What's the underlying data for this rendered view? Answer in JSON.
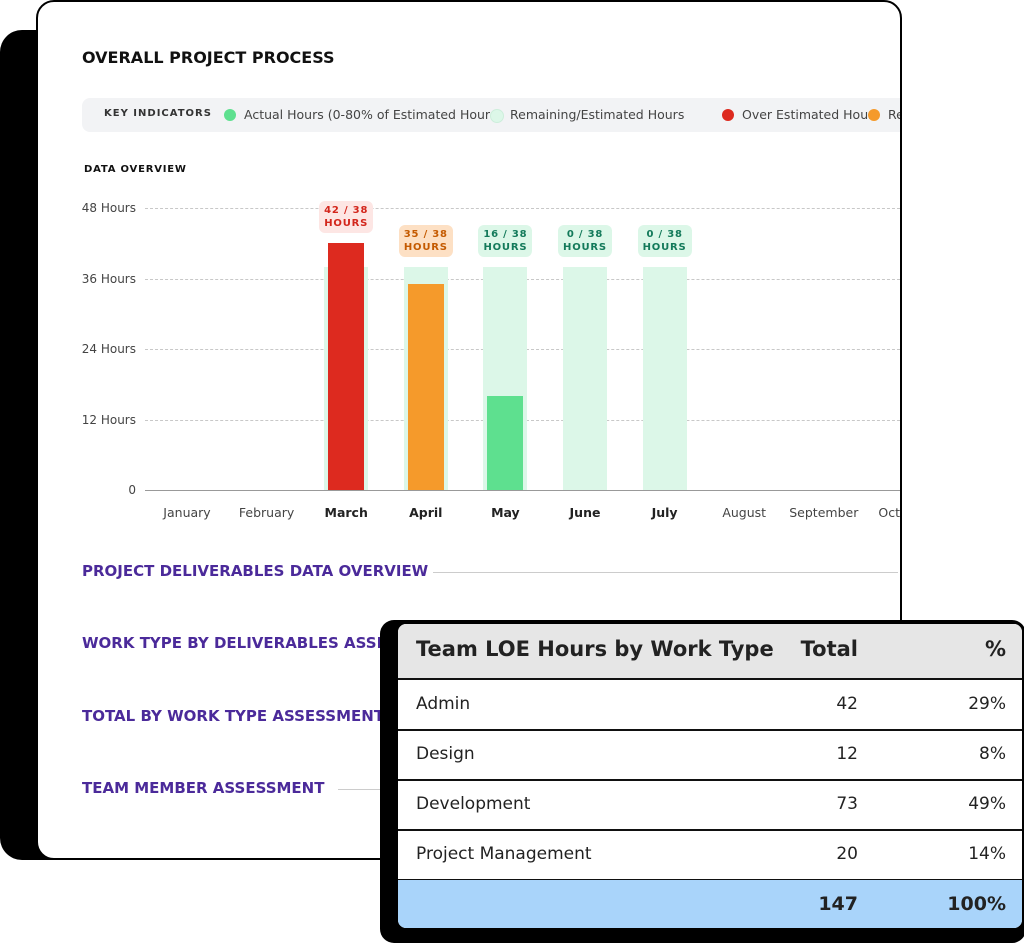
{
  "panel": {
    "title": "OVERALL PROJECT PROCESS",
    "key_indicators_label": "KEY INDICATORS",
    "key_indicators": [
      {
        "name": "Actual Hours (0-80% of Estimated Hour",
        "color": "#5ee08f"
      },
      {
        "name": "Remaining/Estimated Hours",
        "color": "#dcf7e8"
      },
      {
        "name": "Over Estimated Hours",
        "color": "#dd2a1f"
      },
      {
        "name": "Re",
        "color": "#f59a2b"
      }
    ],
    "chart_label": "DATA OVERVIEW",
    "chart_data": {
      "type": "bar",
      "categories": [
        "January",
        "February",
        "March",
        "April",
        "May",
        "June",
        "July",
        "August",
        "September",
        "October"
      ],
      "series": [
        {
          "name": "Remaining/Estimated Hours",
          "color": "#dcf7e8",
          "values": [
            null,
            null,
            38,
            38,
            38,
            38,
            38,
            null,
            null,
            null
          ]
        },
        {
          "name": "Actual Hours (0-80% of Estimated Hour",
          "colors": [
            null,
            null,
            "#dd2a1f",
            "#f59a2b",
            "#5ee08f",
            "#5ee08f",
            "#5ee08f",
            null,
            null,
            null
          ],
          "values": [
            null,
            null,
            42,
            35,
            16,
            0,
            0,
            null,
            null,
            null
          ],
          "value_labels": [
            null,
            null,
            "42 / 38 HOURS",
            "35 / 38 HOURS",
            "16 / 38 HOURS",
            "0 / 38 HOURS",
            "0 / 38 HOURS",
            null,
            null,
            null
          ],
          "label_styles": [
            null,
            null,
            [
              "#fde6e4",
              "#d3261c"
            ],
            [
              "#fde0c4",
              "#c45a00"
            ],
            [
              "#dcf7e8",
              "#137a5a"
            ],
            [
              "#dcf7e8",
              "#137a5a"
            ],
            [
              "#dcf7e8",
              "#137a5a"
            ],
            null,
            null,
            null
          ]
        }
      ],
      "ylim": [
        0,
        48
      ],
      "yticks": [
        0,
        {
          "value": 12,
          "label": "12 Hours"
        },
        {
          "value": 24,
          "label": "24 Hours"
        },
        {
          "value": 36,
          "label": "36 Hours"
        },
        {
          "value": 48,
          "label": "48 Hours"
        }
      ],
      "grid": true
    },
    "sections": [
      "PROJECT DELIVERABLES DATA OVERVIEW",
      "WORK TYPE BY DELIVERABLES ASSESSMENT",
      "TOTAL BY WORK TYPE ASSESSMENT",
      "TEAM MEMBER ASSESSMENT"
    ]
  },
  "table": {
    "header": [
      "Team LOE Hours by Work Type",
      "Total",
      "%"
    ],
    "rows": [
      [
        "Admin",
        "42",
        "29%"
      ],
      [
        "Design",
        "12",
        "8%"
      ],
      [
        "Development",
        "73",
        "49%"
      ],
      [
        "Project Management",
        "20",
        "14%"
      ]
    ],
    "total": {
      "total": "147",
      "percent": "100%"
    }
  }
}
